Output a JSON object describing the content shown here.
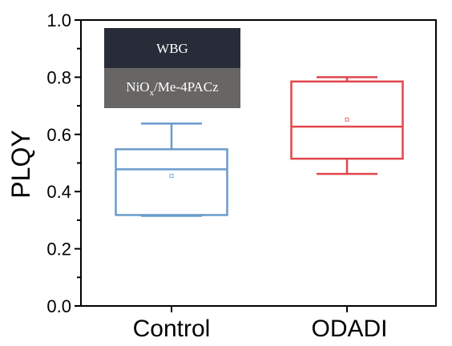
{
  "chart_data": {
    "type": "box",
    "ylabel": "PLQY",
    "xlabel": "",
    "ylim": [
      0.0,
      1.0
    ],
    "yticks": [
      "0.0",
      "0.2",
      "0.4",
      "0.6",
      "0.8",
      "1.0"
    ],
    "categories": [
      "Control",
      "ODADI"
    ],
    "series": [
      {
        "category": "Control",
        "color": "#6a9bcd",
        "whisker_min": 0.315,
        "q1": 0.318,
        "median": 0.478,
        "q3": 0.548,
        "whisker_max": 0.638,
        "mean": 0.455
      },
      {
        "category": "ODADI",
        "color": "#e0474c",
        "whisker_min": 0.462,
        "q1": 0.515,
        "median": 0.627,
        "q3": 0.785,
        "whisker_max": 0.8,
        "mean": 0.652
      }
    ],
    "legend": {
      "top_label": "WBG",
      "top_color": "#272c38",
      "bottom_label_main": "NiO",
      "bottom_label_sub": "x",
      "bottom_label_rest": "/Me-4PACz",
      "bottom_color": "#686665"
    }
  }
}
